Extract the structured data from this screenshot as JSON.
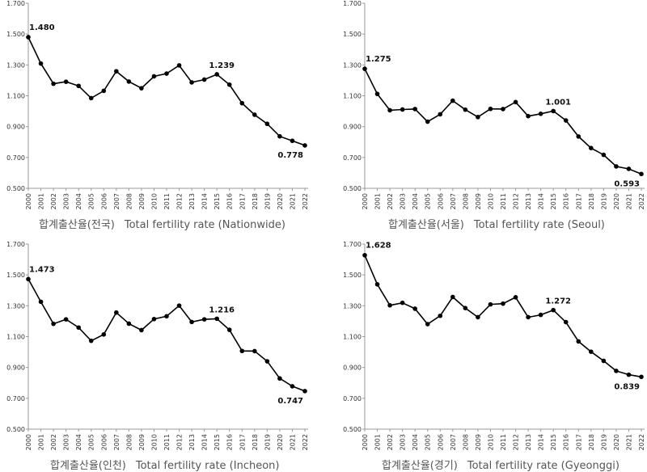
{
  "chart_data": [
    {
      "type": "line",
      "x": [
        "2000",
        "2001",
        "2002",
        "2003",
        "2004",
        "2005",
        "2006",
        "2007",
        "2008",
        "2009",
        "2010",
        "2011",
        "2012",
        "2013",
        "2014",
        "2015",
        "2016",
        "2017",
        "2018",
        "2019",
        "2020",
        "2021",
        "2022"
      ],
      "values": [
        1.48,
        1.309,
        1.178,
        1.191,
        1.164,
        1.085,
        1.132,
        1.259,
        1.192,
        1.149,
        1.226,
        1.244,
        1.297,
        1.187,
        1.205,
        1.239,
        1.172,
        1.052,
        0.977,
        0.918,
        0.837,
        0.808,
        0.778
      ],
      "ylim": [
        0.5,
        1.7
      ],
      "yticks": [
        "0.500",
        "0.700",
        "0.900",
        "1.100",
        "1.300",
        "1.500",
        "1.700"
      ],
      "annotations": [
        {
          "year": "2000",
          "label": "1.480"
        },
        {
          "year": "2015",
          "label": "1.239"
        },
        {
          "year": "2022",
          "label": "0.778"
        }
      ],
      "caption_ko": "합계출산율(전국)",
      "caption_en": "Total fertility rate (Nationwide)"
    },
    {
      "type": "line",
      "x": [
        "2000",
        "2001",
        "2002",
        "2003",
        "2004",
        "2005",
        "2006",
        "2007",
        "2008",
        "2009",
        "2010",
        "2011",
        "2012",
        "2013",
        "2014",
        "2015",
        "2016",
        "2017",
        "2018",
        "2019",
        "2020",
        "2021",
        "2022"
      ],
      "values": [
        1.275,
        1.112,
        1.006,
        1.011,
        1.014,
        0.932,
        0.98,
        1.068,
        1.01,
        0.962,
        1.015,
        1.014,
        1.059,
        0.968,
        0.983,
        1.001,
        0.94,
        0.836,
        0.761,
        0.717,
        0.642,
        0.626,
        0.593
      ],
      "ylim": [
        0.5,
        1.7
      ],
      "yticks": [
        "0.500",
        "0.700",
        "0.900",
        "1.100",
        "1.300",
        "1.500",
        "1.700"
      ],
      "annotations": [
        {
          "year": "2000",
          "label": "1.275"
        },
        {
          "year": "2015",
          "label": "1.001"
        },
        {
          "year": "2022",
          "label": "0.593"
        }
      ],
      "caption_ko": "합계출산율(서울)",
      "caption_en": "Total fertility rate (Seoul)"
    },
    {
      "type": "line",
      "x": [
        "2000",
        "2001",
        "2002",
        "2003",
        "2004",
        "2005",
        "2006",
        "2007",
        "2008",
        "2009",
        "2010",
        "2011",
        "2012",
        "2013",
        "2014",
        "2015",
        "2016",
        "2017",
        "2018",
        "2019",
        "2020",
        "2021",
        "2022"
      ],
      "values": [
        1.473,
        1.326,
        1.183,
        1.212,
        1.159,
        1.073,
        1.114,
        1.256,
        1.184,
        1.142,
        1.214,
        1.232,
        1.301,
        1.195,
        1.212,
        1.216,
        1.144,
        1.007,
        1.006,
        0.94,
        0.829,
        0.778,
        0.747
      ],
      "ylim": [
        0.5,
        1.7
      ],
      "yticks": [
        "0.500",
        "0.700",
        "0.900",
        "1.100",
        "1.300",
        "1.500",
        "1.700"
      ],
      "annotations": [
        {
          "year": "2000",
          "label": "1.473"
        },
        {
          "year": "2015",
          "label": "1.216"
        },
        {
          "year": "2022",
          "label": "0.747"
        }
      ],
      "caption_ko": "합계출산율(인천)",
      "caption_en": "Total fertility rate (Incheon)"
    },
    {
      "type": "line",
      "x": [
        "2000",
        "2001",
        "2002",
        "2003",
        "2004",
        "2005",
        "2006",
        "2007",
        "2008",
        "2009",
        "2010",
        "2011",
        "2012",
        "2013",
        "2014",
        "2015",
        "2016",
        "2017",
        "2018",
        "2019",
        "2020",
        "2021",
        "2022"
      ],
      "values": [
        1.628,
        1.439,
        1.303,
        1.319,
        1.281,
        1.181,
        1.235,
        1.357,
        1.285,
        1.226,
        1.309,
        1.314,
        1.355,
        1.226,
        1.241,
        1.272,
        1.194,
        1.069,
        1.002,
        0.943,
        0.878,
        0.853,
        0.839
      ],
      "ylim": [
        0.5,
        1.7
      ],
      "yticks": [
        "0.500",
        "0.700",
        "0.900",
        "1.100",
        "1.300",
        "1.500",
        "1.700"
      ],
      "annotations": [
        {
          "year": "2000",
          "label": "1.628"
        },
        {
          "year": "2015",
          "label": "1.272"
        },
        {
          "year": "2022",
          "label": "0.839"
        }
      ],
      "caption_ko": "합계출산율(경기)",
      "caption_en": "Total fertility rate (Gyeonggi)"
    }
  ]
}
